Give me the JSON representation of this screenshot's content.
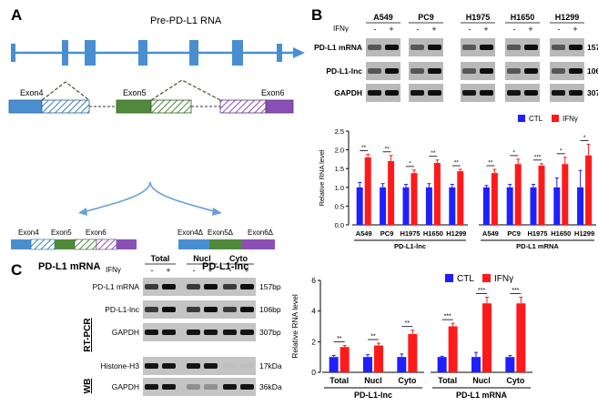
{
  "panel_a": {
    "letter": "A",
    "title": "Pre-PD-L1 RNA",
    "exon4": "Exon4",
    "exon5": "Exon5",
    "exon6": "Exon6",
    "mrna_exons": [
      "Exon4",
      "Exon5",
      "Exon6"
    ],
    "lnc_exons": [
      "Exon4Δ",
      "Exon5Δ",
      "Exon6Δ"
    ],
    "mrna_label": "PD-L1 mRNA",
    "lnc_label": "PD-L1-lnc"
  },
  "panel_b": {
    "letter": "B",
    "treatment": "IFNγ",
    "cell_lines": [
      "A549",
      "PC9",
      "H1975",
      "H1650",
      "H1299"
    ],
    "signs": [
      "-",
      "+"
    ],
    "rows": [
      "PD-L1 mRNA",
      "PD-L1-lnc",
      "GAPDH"
    ],
    "sizes": [
      "157bp",
      "106bp",
      "307bp"
    ]
  },
  "panel_c": {
    "letter": "C",
    "treatment": "IFNγ",
    "fractions": [
      "Total",
      "Nucl",
      "Cyto"
    ],
    "signs": [
      "-",
      "+"
    ],
    "rtpcr_label": "RT-PCR",
    "wb_label": "WB",
    "rtpcr_rows": [
      "PD-L1 mRNA",
      "PD-L1-lnc",
      "GAPDH"
    ],
    "rtpcr_sizes": [
      "157bp",
      "106bp",
      "307bp"
    ],
    "wb_rows": [
      "Histone-H3",
      "GAPDH"
    ],
    "wb_sizes": [
      "17kDa",
      "36kDa"
    ]
  },
  "chart_data": [
    {
      "type": "bar",
      "ylabel": "Relative RNA level",
      "ylim": [
        0,
        2.5
      ],
      "yticks": [
        0.0,
        0.5,
        1.0,
        1.5,
        2.0,
        2.5
      ],
      "yticklabels": [
        "0.0",
        "0.5",
        "1.0",
        "1.5",
        "2.0",
        "2.5"
      ],
      "legend": [
        "CTL",
        "IFNγ"
      ],
      "legend_position": "top-right",
      "colors": {
        "CTL": "#1f1fff",
        "IFNγ": "#ff1a1a"
      },
      "groups": [
        {
          "label": "PD-L1-lnc",
          "categories": [
            "A549",
            "PC9",
            "H1975",
            "H1650",
            "H1299"
          ],
          "ctl": [
            1.0,
            1.0,
            1.0,
            1.0,
            1.0
          ],
          "ctl_err": [
            0.13,
            0.1,
            0.08,
            0.1,
            0.08
          ],
          "ifn": [
            1.8,
            1.7,
            1.38,
            1.65,
            1.43
          ],
          "ifn_err": [
            0.08,
            0.15,
            0.08,
            0.08,
            0.05
          ],
          "sig": [
            "**",
            "**",
            "*",
            "**",
            "**"
          ]
        },
        {
          "label": "PD-L1 mRNA",
          "categories": [
            "A549",
            "PC9",
            "H1975",
            "H1650",
            "H1299"
          ],
          "ctl": [
            1.0,
            1.0,
            1.0,
            1.0,
            1.0
          ],
          "ctl_err": [
            0.05,
            0.08,
            0.08,
            0.25,
            0.45
          ],
          "ifn": [
            1.38,
            1.62,
            1.58,
            1.62,
            1.85
          ],
          "ifn_err": [
            0.1,
            0.13,
            0.05,
            0.18,
            0.3
          ],
          "sig": [
            "**",
            "*",
            "***",
            "*",
            "*"
          ]
        }
      ]
    },
    {
      "type": "bar",
      "ylabel": "Relative RNA level",
      "ylim": [
        0,
        6
      ],
      "yticks": [
        0,
        2,
        4,
        6
      ],
      "yticklabels": [
        "0",
        "2",
        "4",
        "6"
      ],
      "legend": [
        "CTL",
        "IFNγ"
      ],
      "legend_position": "top-right",
      "colors": {
        "CTL": "#1f1fff",
        "IFNγ": "#ff1a1a"
      },
      "groups": [
        {
          "label": "PD-L1-lnc",
          "categories": [
            "Total",
            "Nucl",
            "Cyto"
          ],
          "ctl": [
            1.0,
            1.0,
            1.0
          ],
          "ctl_err": [
            0.1,
            0.15,
            0.2
          ],
          "ifn": [
            1.65,
            1.75,
            2.5
          ],
          "ifn_err": [
            0.1,
            0.15,
            0.25
          ],
          "sig": [
            "**",
            "**",
            "**"
          ]
        },
        {
          "label": "PD-L1 mRNA",
          "categories": [
            "Total",
            "Nucl",
            "Cyto"
          ],
          "ctl": [
            1.0,
            1.0,
            1.0
          ],
          "ctl_err": [
            0.05,
            0.3,
            0.1
          ],
          "ifn": [
            3.0,
            4.5,
            4.5
          ],
          "ifn_err": [
            0.2,
            0.4,
            0.4
          ],
          "sig": [
            "***",
            "***",
            "***"
          ]
        }
      ]
    }
  ]
}
